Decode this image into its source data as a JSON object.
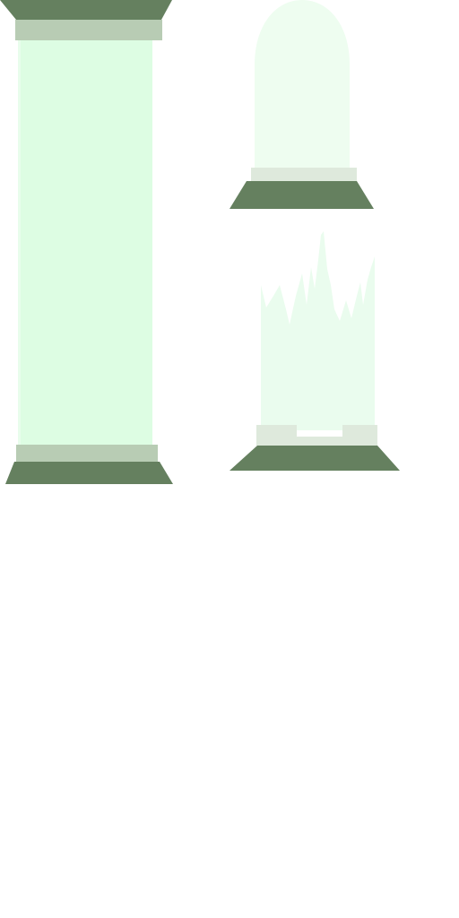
{
  "sheet": {
    "background": "#ffffff"
  },
  "sprites": [
    {
      "id": "column-full",
      "kind": "intact-pillar",
      "colors": {
        "shaft": "#ddfde3",
        "shaft_edge": "#e8fdec",
        "collar": "#b8ccb4",
        "cap": "#65805f",
        "base": "#65805f"
      }
    },
    {
      "id": "column-domed",
      "kind": "capsule-pillar-top",
      "colors": {
        "body": "#eefdf0",
        "collar": "#dee9dc",
        "base": "#65805f"
      }
    },
    {
      "id": "column-broken",
      "kind": "shattered-pillar-base",
      "colors": {
        "shards": "#eafcee",
        "collar": "#dee9dc",
        "base": "#65805f"
      }
    }
  ]
}
